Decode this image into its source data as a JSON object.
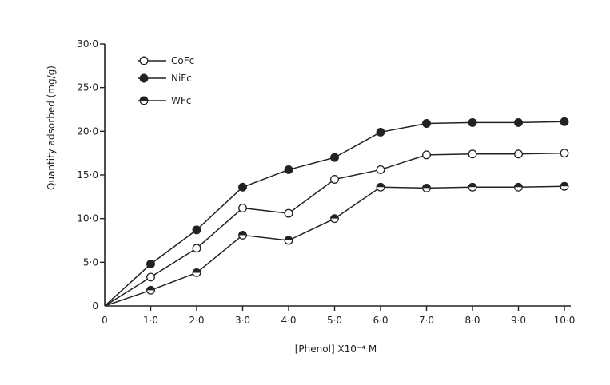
{
  "chart_data": {
    "type": "line",
    "title": "",
    "xlabel": "[Phenol] X10⁻⁴ M",
    "ylabel": "Quantity adsorbed (mg/g)",
    "xlim": [
      0,
      10
    ],
    "ylim": [
      0,
      30
    ],
    "x_ticks": [
      "0",
      "1·0",
      "2·0",
      "3·0",
      "4·0",
      "5·0",
      "6·0",
      "7·0",
      "8·0",
      "9·0",
      "10·0"
    ],
    "y_ticks": [
      "0",
      "5·0",
      "10·0",
      "15·0",
      "20·0",
      "25·0",
      "30·0"
    ],
    "grid": false,
    "legend_position": "top-left",
    "x": [
      0,
      1,
      2,
      3,
      4,
      5,
      6,
      7,
      8,
      9,
      10
    ],
    "series": [
      {
        "name": "CoFc",
        "marker": "open-circle",
        "values": [
          0,
          3.3,
          6.6,
          11.2,
          10.6,
          14.5,
          15.6,
          17.3,
          17.4,
          17.4,
          17.5
        ]
      },
      {
        "name": "NiFc",
        "marker": "filled-circle",
        "values": [
          0,
          4.8,
          8.7,
          13.6,
          15.6,
          17.0,
          19.9,
          20.9,
          21.0,
          21.0,
          21.1
        ]
      },
      {
        "name": "WFc",
        "marker": "half-filled-circle",
        "values": [
          0,
          1.8,
          3.8,
          8.1,
          7.5,
          10.0,
          13.6,
          13.5,
          13.6,
          13.6,
          13.7
        ]
      }
    ],
    "colors": {
      "line": "#222222",
      "fill": "#222222",
      "background": "#ffffff"
    }
  }
}
